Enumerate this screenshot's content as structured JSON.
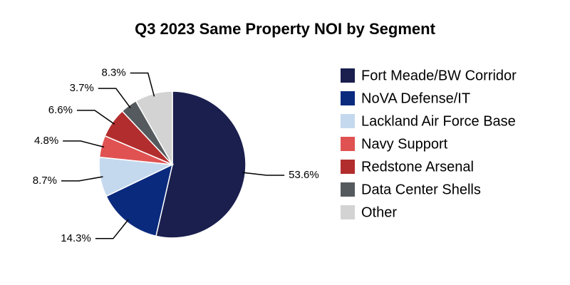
{
  "chart_data": {
    "type": "pie",
    "title": "Q3 2023 Same Property NOI by Segment",
    "categories": [
      "Fort Meade/BW Corridor",
      "NoVA Defense/IT",
      "Lackland Air Force Base",
      "Navy Support",
      "Redstone Arsenal",
      "Data Center Shells",
      "Other"
    ],
    "values": [
      53.6,
      14.3,
      8.7,
      4.8,
      6.6,
      3.7,
      8.3
    ],
    "value_labels": [
      "53.6%",
      "14.3%",
      "8.7%",
      "4.8%",
      "6.6%",
      "3.7%",
      "8.3%"
    ],
    "colors": [
      "#1a1f4e",
      "#0a2a7e",
      "#c5d9ee",
      "#e05252",
      "#b22d2d",
      "#555a5e",
      "#d3d3d3"
    ],
    "legend": "right"
  }
}
